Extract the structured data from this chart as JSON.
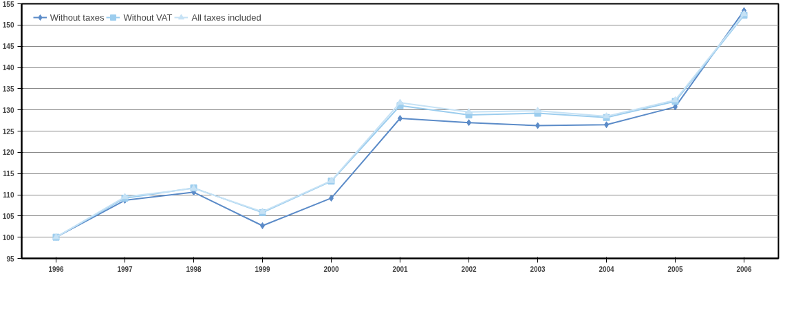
{
  "chart_data": {
    "type": "line",
    "categories": [
      "1996",
      "1997",
      "1998",
      "1999",
      "2000",
      "2001",
      "2002",
      "2003",
      "2004",
      "2005",
      "2006"
    ],
    "ylim": [
      95,
      155
    ],
    "yticks": [
      95,
      100,
      105,
      110,
      115,
      120,
      125,
      130,
      135,
      140,
      145,
      150,
      155
    ],
    "grid": "y",
    "legend": "top left",
    "series": [
      {
        "name": "Without taxes",
        "color": "#5b8bc8",
        "marker": "diamond",
        "values": [
          100,
          108.7,
          110.6,
          102.7,
          109.2,
          128,
          127,
          126.3,
          126.5,
          130.7,
          153.4
        ]
      },
      {
        "name": "Without VAT",
        "color": "#9ccdee",
        "marker": "square",
        "values": [
          100,
          109.2,
          111.6,
          105.8,
          113.2,
          131,
          128.8,
          129.2,
          128.2,
          132,
          152.3
        ]
      },
      {
        "name": "All taxes included",
        "color": "#c6e2f5",
        "marker": "triangle",
        "values": [
          100,
          109.5,
          111.5,
          106,
          113.3,
          131.7,
          129.5,
          129.8,
          128.5,
          132.3,
          152.6
        ]
      }
    ]
  }
}
